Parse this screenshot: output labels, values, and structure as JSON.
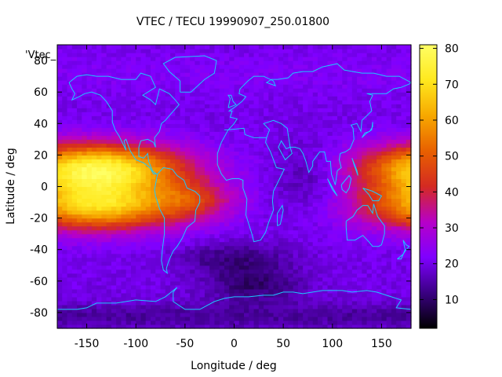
{
  "chart_data": {
    "type": "heatmap",
    "title": "VTEC / TECU 19990907_250.01800",
    "xlabel": "Longitude / deg",
    "ylabel": "Latitude / deg",
    "xlim": [
      -180,
      180
    ],
    "ylim": [
      -90,
      90
    ],
    "x_ticks": [
      "-150",
      "-100",
      "-50",
      "0",
      "50",
      "100",
      "150"
    ],
    "y_ticks": [
      "60",
      "40",
      "20",
      "0",
      "-20",
      "-40",
      "-60",
      "-80"
    ],
    "y_ticks_values": [
      60,
      40,
      20,
      0,
      -20,
      -40,
      -60,
      -80
    ],
    "y_top_tick": "80",
    "x_ticks_values": [
      -150,
      -100,
      -50,
      0,
      50,
      100,
      150
    ],
    "legend_label": "'Vtec_",
    "colorbar": {
      "range": [
        2,
        81
      ],
      "ticks": [
        "80",
        "70",
        "60",
        "50",
        "40",
        "30",
        "20",
        "10"
      ],
      "tick_values": [
        80,
        70,
        60,
        50,
        40,
        30,
        20,
        10
      ],
      "colormap": [
        "#000000",
        "#3a0082",
        "#7f00ff",
        "#b700c8",
        "#d42a22",
        "#e86000",
        "#f7a800",
        "#ffe81e",
        "#ffff64"
      ]
    },
    "overlay": "coastlines",
    "overlay_color": "#1ec8ff",
    "grid_resolution_deg": [
      5,
      2.5
    ],
    "crest_northern_anomaly_lat": 12,
    "crest_southern_anomaly_lat": -12
  }
}
